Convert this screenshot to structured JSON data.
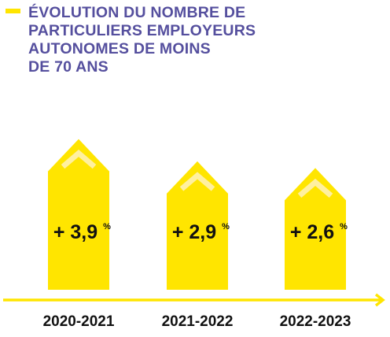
{
  "title": {
    "lines": [
      "ÉVOLUTION DU NOMBRE DE",
      "PARTICULIERS EMPLOYEURS",
      "AUTONOMES DE MOINS",
      "DE 70 ANS"
    ]
  },
  "chart_data": {
    "type": "bar",
    "categories": [
      "2020-2021",
      "2021-2022",
      "2022-2023"
    ],
    "values": [
      3.9,
      2.9,
      2.6
    ],
    "value_labels": [
      "+ 3,9",
      "+ 2,9",
      "+ 2,6"
    ],
    "unit": "%",
    "ylabel": "",
    "xlabel": "",
    "grid": false,
    "legend": "none"
  },
  "colors": {
    "title": "#554f9e",
    "bar": "#ffe500",
    "chevron": "#fff0a0",
    "axis": "#ffe500",
    "label": "#111111"
  }
}
